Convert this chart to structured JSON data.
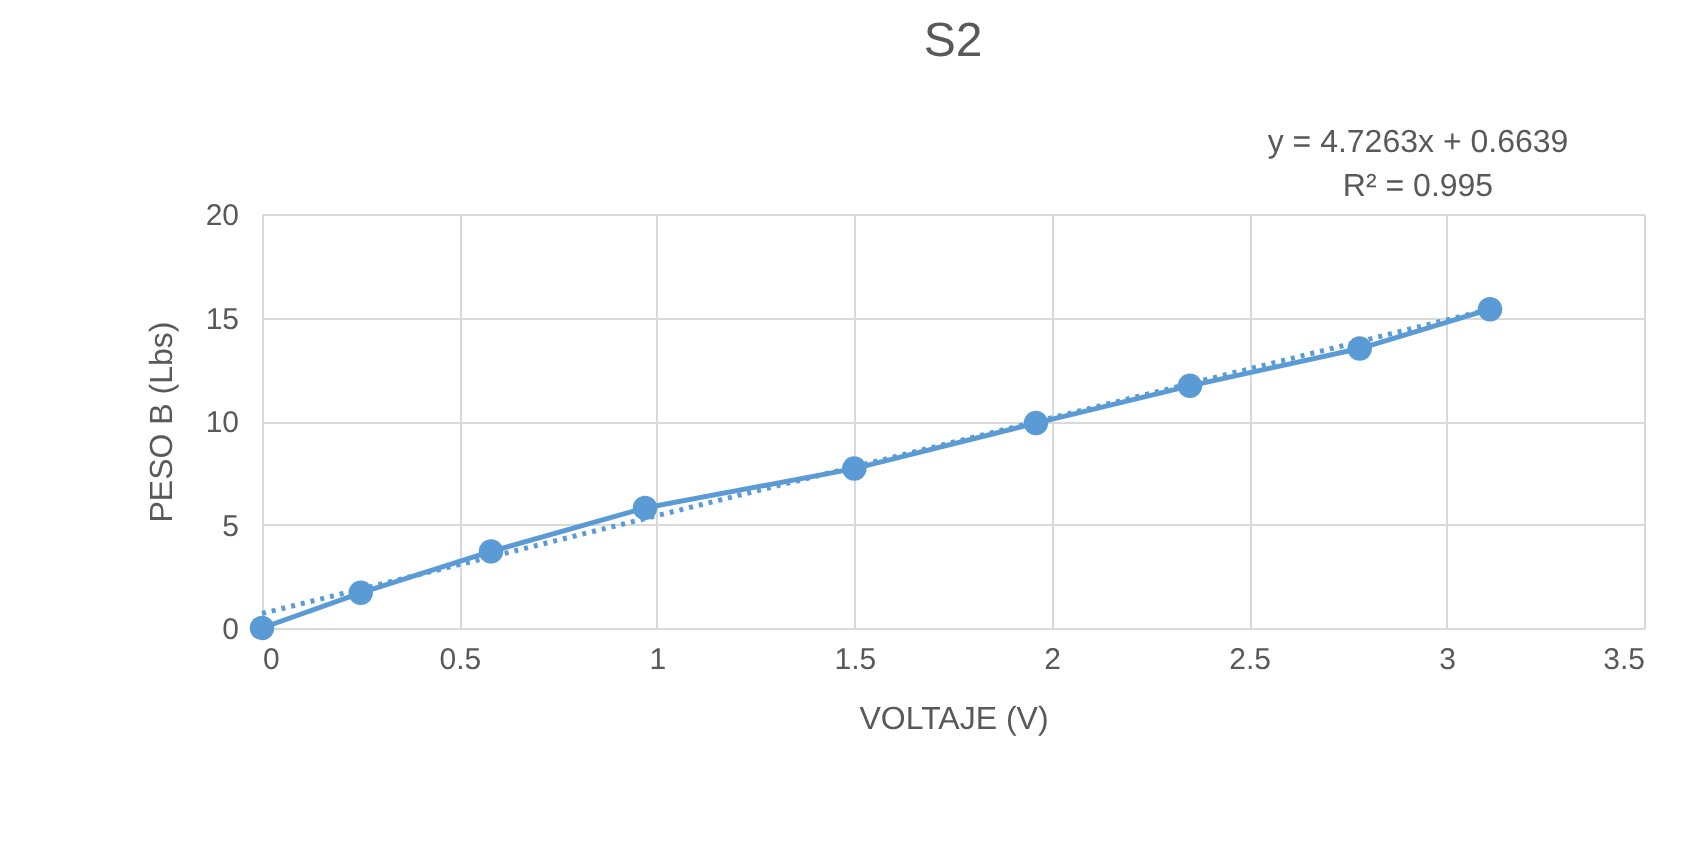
{
  "chart_data": {
    "type": "line",
    "title": "S2",
    "xlabel": "VOLTAJE (V)",
    "ylabel": "PESO B (Lbs)",
    "annotations": [
      "y = 4.7263x + 0.6639",
      "R² = 0.995"
    ],
    "x": [
      0,
      0.25,
      0.58,
      0.97,
      1.5,
      1.96,
      2.35,
      2.78,
      3.11
    ],
    "series": [
      {
        "color": "#5b9bd5",
        "values": [
          0,
          1.7,
          3.7,
          5.8,
          7.7,
          9.9,
          11.7,
          13.5,
          15.4
        ],
        "marker": "circle",
        "line_style": "solid"
      },
      {
        "type": "line",
        "color": "#5b9bd5",
        "x": [
          0,
          3.11
        ],
        "values": [
          0.7,
          15.4
        ],
        "marker": "none",
        "line_style": "dotted"
      }
    ],
    "xlim": [
      0,
      3.5
    ],
    "xticks": [
      0,
      0.5,
      1,
      1.5,
      2,
      2.5,
      3,
      3.5
    ],
    "ylim": [
      0,
      20
    ],
    "yticks": [
      0,
      5,
      10,
      15,
      20
    ],
    "grid": true
  }
}
